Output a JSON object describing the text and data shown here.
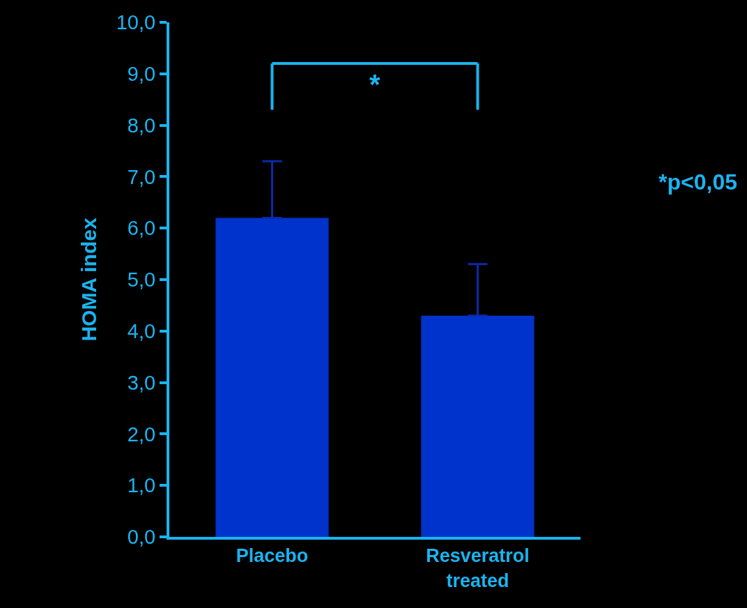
{
  "chart_data": {
    "type": "bar",
    "ylabel": "HOMA index",
    "categories": [
      "Placebo",
      "Resveratrol\ntreated"
    ],
    "values": [
      6.2,
      4.3
    ],
    "color": "#0033cc",
    "errors": [
      [
        6.2,
        7.3
      ],
      [
        4.3,
        5.3
      ]
    ],
    "ylim": [
      0,
      10
    ],
    "yticks": [
      {
        "value": 0,
        "label": "0,0"
      },
      {
        "value": 1,
        "label": "1,0"
      },
      {
        "value": 2,
        "label": "2,0"
      },
      {
        "value": 3,
        "label": "3,0"
      },
      {
        "value": 4,
        "label": "4,0"
      },
      {
        "value": 5,
        "label": "5,0"
      },
      {
        "value": 6,
        "label": "6,0"
      },
      {
        "value": 7,
        "label": "7,0"
      },
      {
        "value": 8,
        "label": "8,0"
      },
      {
        "value": 9,
        "label": "9,0"
      },
      {
        "value": 10,
        "label": "10,0"
      }
    ],
    "annotations": [
      "*",
      "*p<0,05"
    ],
    "grid": false,
    "legend": false
  }
}
